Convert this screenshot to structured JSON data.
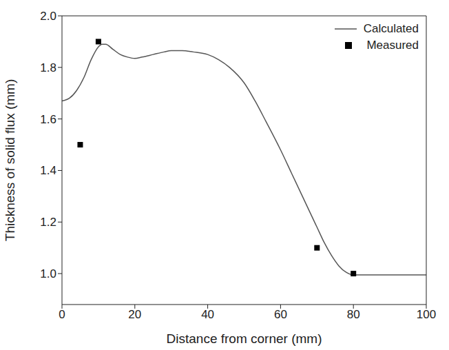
{
  "chart_data": {
    "type": "line",
    "x_label": "Distance from corner (mm)",
    "y_label": "Thickness of solid flux (mm)",
    "xlim": [
      0,
      100
    ],
    "xticks": [
      0,
      20,
      40,
      60,
      80,
      100
    ],
    "ylim": [
      0.88,
      2.0
    ],
    "yticks": [
      {
        "value": 1,
        "label": "1.0"
      },
      {
        "value": 1.2,
        "label": "1.2"
      },
      {
        "value": 1.4,
        "label": "1.4"
      },
      {
        "value": 1.6,
        "label": "1.6"
      },
      {
        "value": 1.8,
        "label": "1.8"
      },
      {
        "value": 2,
        "label": "2.0"
      }
    ],
    "legend": "top-right",
    "series": [
      {
        "name": "Calculated",
        "type": "line",
        "color": "#555555",
        "line_style": "solid",
        "marker": "none",
        "x": [
          0,
          2,
          4,
          6,
          8,
          10,
          11,
          12,
          14,
          16,
          18,
          20,
          22,
          25,
          28,
          30,
          33,
          36,
          40,
          43,
          46,
          50,
          53,
          56,
          60,
          63,
          66,
          68,
          70,
          72,
          74,
          76,
          78,
          80,
          85,
          90,
          100
        ],
        "values": [
          1.67,
          1.68,
          1.71,
          1.76,
          1.83,
          1.88,
          1.89,
          1.89,
          1.87,
          1.85,
          1.84,
          1.835,
          1.84,
          1.85,
          1.86,
          1.865,
          1.865,
          1.86,
          1.85,
          1.83,
          1.8,
          1.74,
          1.67,
          1.59,
          1.48,
          1.39,
          1.3,
          1.24,
          1.18,
          1.12,
          1.07,
          1.03,
          1.005,
          0.995,
          0.995,
          0.995,
          0.995
        ]
      },
      {
        "name": "Measured",
        "type": "scatter",
        "color": "#000000",
        "marker": "square",
        "x": [
          5,
          10,
          70,
          80
        ],
        "values": [
          1.5,
          1.9,
          1.1,
          1.0
        ]
      }
    ]
  }
}
